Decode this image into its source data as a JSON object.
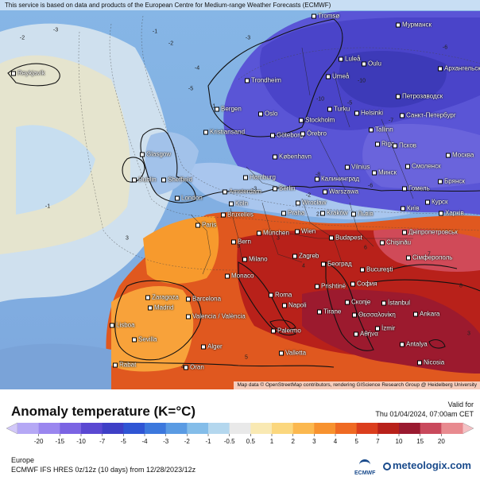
{
  "header": {
    "disclaimer": "This service is based on data and products of the European Centre for Medium-range Weather Forecasts (ECMWF)"
  },
  "map": {
    "attribution": "Map data © OpenStreetMap contributors, rendering GIScience Research Group @ Heidelberg University",
    "cities": [
      {
        "name": "Reykjavík"
      },
      {
        "name": "Tromsø"
      },
      {
        "name": "Мурманск"
      },
      {
        "name": "Luleå"
      },
      {
        "name": "Oulu"
      },
      {
        "name": "Umeå"
      },
      {
        "name": "Trondheim"
      },
      {
        "name": "Архангельск"
      },
      {
        "name": "Петрозаводск"
      },
      {
        "name": "Bergen"
      },
      {
        "name": "Oslo"
      },
      {
        "name": "Turku"
      },
      {
        "name": "Helsinki"
      },
      {
        "name": "Санкт-Петербург"
      },
      {
        "name": "Kristiansand"
      },
      {
        "name": "Stockholm"
      },
      {
        "name": "Tallinn"
      },
      {
        "name": "Göteborg"
      },
      {
        "name": "Örebro"
      },
      {
        "name": "Riga"
      },
      {
        "name": "Псков"
      },
      {
        "name": "Glasgow"
      },
      {
        "name": "København"
      },
      {
        "name": "Vilnius"
      },
      {
        "name": "Минск"
      },
      {
        "name": "Смоленск"
      },
      {
        "name": "Москва"
      },
      {
        "name": "Dublin"
      },
      {
        "name": "Sheffield"
      },
      {
        "name": "Hamburg"
      },
      {
        "name": "Калининград"
      },
      {
        "name": "Брянск"
      },
      {
        "name": "Amsterdam"
      },
      {
        "name": "Berlin"
      },
      {
        "name": "Warszawa"
      },
      {
        "name": "Гомель"
      },
      {
        "name": "London"
      },
      {
        "name": "Köln"
      },
      {
        "name": "Wrocław"
      },
      {
        "name": "Київ"
      },
      {
        "name": "Курск"
      },
      {
        "name": "Bruxelles"
      },
      {
        "name": "Praha"
      },
      {
        "name": "Kraków"
      },
      {
        "name": "Львів"
      },
      {
        "name": "Харків"
      },
      {
        "name": "Paris"
      },
      {
        "name": "München"
      },
      {
        "name": "Wien"
      },
      {
        "name": "Budapest"
      },
      {
        "name": "Дніпропетровськ"
      },
      {
        "name": "Bern"
      },
      {
        "name": "Chișinău"
      },
      {
        "name": "Milano"
      },
      {
        "name": "Zagreb"
      },
      {
        "name": "Сімферополь"
      },
      {
        "name": "Monaco"
      },
      {
        "name": "Београд"
      },
      {
        "name": "București"
      },
      {
        "name": "Roma"
      },
      {
        "name": "Prishtinë"
      },
      {
        "name": "София"
      },
      {
        "name": "Zaragoza"
      },
      {
        "name": "Barcelona"
      },
      {
        "name": "Napoli"
      },
      {
        "name": "Скопје"
      },
      {
        "name": "İstanbul"
      },
      {
        "name": "Madrid"
      },
      {
        "name": "Tirane"
      },
      {
        "name": "Θεσσαλονίκη"
      },
      {
        "name": "Lisboa"
      },
      {
        "name": "Valencia / València"
      },
      {
        "name": "İzmir"
      },
      {
        "name": "Ankara"
      },
      {
        "name": "Sevilla"
      },
      {
        "name": "Palermo"
      },
      {
        "name": "Αθήνα"
      },
      {
        "name": "Antalya"
      },
      {
        "name": "Alger"
      },
      {
        "name": "Valletta"
      },
      {
        "name": "Nicosia"
      },
      {
        "name": "Rabat"
      },
      {
        "name": "Oran"
      }
    ],
    "isolines": [
      "-2",
      "-3",
      "-1",
      "-2",
      "-3",
      "-4",
      "-5",
      "-6",
      "-5",
      "-10",
      "-7",
      "-10",
      "-8",
      "-6",
      "-4",
      "-1",
      "-2",
      "-3",
      "-1",
      "2",
      "3",
      "4",
      "5",
      "6",
      "7",
      "8",
      "5",
      "4",
      "3",
      "3"
    ]
  },
  "footer": {
    "title": "Anomaly temperature (K=°C)",
    "valid_label": "Valid for",
    "valid_time": "Thu 01/04/2024, 07:00am CET",
    "region": "Europe",
    "model_info": "ECMWF IFS HRES 0z/12z (10 days) from 12/28/2023/12z",
    "ecmwf_label": "ECMWF",
    "brand": "meteologix.com"
  },
  "legend": {
    "ticks": [
      "-20",
      "-15",
      "-10",
      "-7",
      "-5",
      "-4",
      "-3",
      "-2",
      "-1",
      "-0.5",
      "0.5",
      "1",
      "2",
      "3",
      "4",
      "5",
      "7",
      "10",
      "15",
      "20"
    ],
    "colors": [
      "#b5a8f5",
      "#9a86ef",
      "#7b64e3",
      "#5a48d2",
      "#3e3fc6",
      "#2f55d4",
      "#3c78dd",
      "#5a9be3",
      "#84bde9",
      "#b4d7ee",
      "#e9e9e9",
      "#f9e9b3",
      "#fbd77e",
      "#fbb84f",
      "#f7922f",
      "#ef6a23",
      "#db3e1d",
      "#b8211a",
      "#9a1a30",
      "#c9495c",
      "#e88a8f"
    ],
    "arrow_left_color": "#d2c8f9",
    "arrow_right_color": "#f4c1c4"
  }
}
